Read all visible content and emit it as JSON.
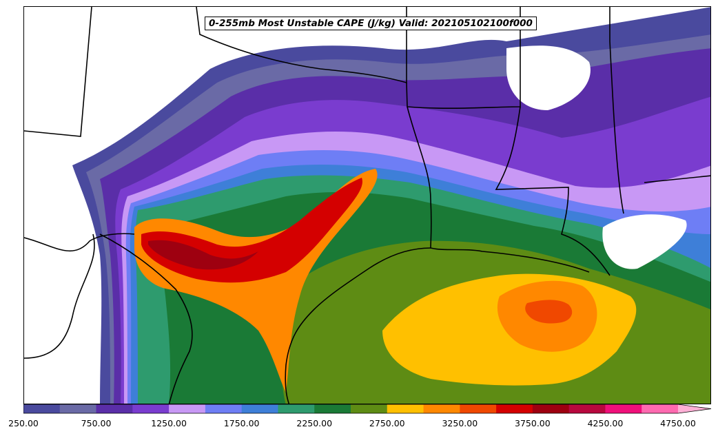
{
  "map": {
    "title": "0-255mb Most Unstable CAPE (J/kg) Valid: 202105102100f000",
    "variable": "Most Unstable CAPE",
    "units": "J/kg",
    "layer": "0-255mb",
    "valid_time": "202105102100f000"
  },
  "colorbar": {
    "levels": [
      250,
      500,
      750,
      1000,
      1250,
      1500,
      1750,
      2000,
      2250,
      2500,
      2750,
      3000,
      3250,
      3500,
      3750,
      4000,
      4250,
      4500,
      4750
    ],
    "colors": [
      "#4a4a9e",
      "#6a6aa6",
      "#5a2ea8",
      "#7a3ccf",
      "#c898f5",
      "#6e7ef5",
      "#3e7fd8",
      "#2e9b6e",
      "#1a7a36",
      "#5e8c14",
      "#ffc000",
      "#ff8800",
      "#f04800",
      "#d40000",
      "#9e0010",
      "#b8083e",
      "#f0107a",
      "#ff6ab0",
      "#ffb0d6"
    ],
    "tick_labels": [
      "250.00",
      "750.00",
      "1250.00",
      "1750.00",
      "2250.00",
      "2750.00",
      "3250.00",
      "3750.00",
      "4250.00",
      "4750.00"
    ],
    "extend": "max"
  }
}
